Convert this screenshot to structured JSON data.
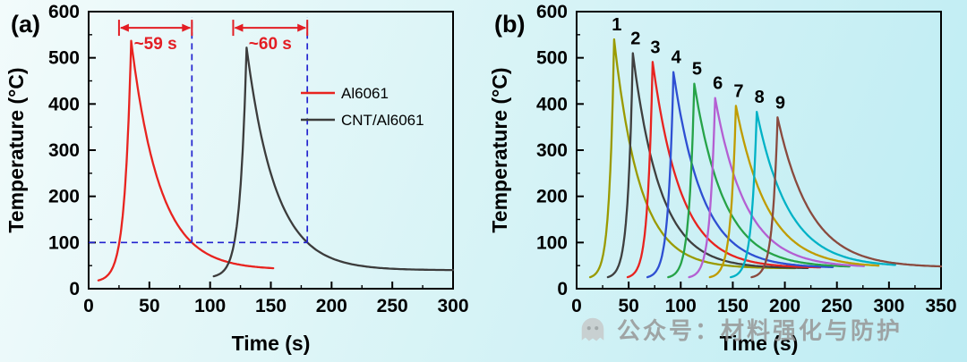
{
  "figure": {
    "background": {
      "gradient_from": "#f2fbfb",
      "gradient_to": "#bdecf3"
    },
    "watermark": {
      "text": "公众号：材料强化与防护",
      "color": "#979797",
      "icon": "ghost-logo"
    }
  },
  "chart_data": [
    {
      "id": "a",
      "type": "line",
      "panel_label": "(a)",
      "xlabel": "Time (s)",
      "ylabel": "Temperature (°C)",
      "xlim": [
        0,
        300
      ],
      "ylim": [
        0,
        600
      ],
      "xticks": [
        0,
        50,
        100,
        150,
        200,
        250,
        300
      ],
      "yticks": [
        0,
        100,
        200,
        300,
        400,
        500,
        600
      ],
      "x_minor_step": 25,
      "y_minor_step": 50,
      "grid": false,
      "legend_position": "middle-right",
      "series": [
        {
          "name": "Al6061",
          "color": "#e8231f",
          "start_time": 8,
          "start_temp": 18,
          "peak_time": 35,
          "peak_temp": 537,
          "time_cross_100_up": 25,
          "time_cross_100_down": 85,
          "end_time": 152,
          "end_temp": 45
        },
        {
          "name": "CNT/Al6061",
          "color": "#3c3c3c",
          "start_time": 103,
          "start_temp": 27,
          "peak_time": 130,
          "peak_temp": 522,
          "time_cross_100_up": 120,
          "time_cross_100_down": 180,
          "end_time": 300,
          "end_temp": 44
        }
      ],
      "annotations": {
        "duration_arrows": [
          {
            "label": "~59 s",
            "x_from": 25,
            "x_to": 85,
            "y": 565,
            "color": "#e31e24"
          },
          {
            "label": "~60 s",
            "x_from": 119,
            "x_to": 180,
            "y": 565,
            "color": "#e31e24"
          }
        ],
        "reference_lines": {
          "color": "#2323cf",
          "horizontal": [
            {
              "y": 100,
              "x_from": 0,
              "x_to": 180
            }
          ],
          "vertical": [
            {
              "x": 85,
              "y_from": 100,
              "y_to": 588
            },
            {
              "x": 180,
              "y_from": 100,
              "y_to": 588
            }
          ]
        }
      }
    },
    {
      "id": "b",
      "type": "line",
      "panel_label": "(b)",
      "xlabel": "Time (s)",
      "ylabel": "Temperature (°C)",
      "xlim": [
        0,
        350
      ],
      "ylim": [
        0,
        600
      ],
      "xticks": [
        0,
        50,
        100,
        150,
        200,
        250,
        300,
        350
      ],
      "yticks": [
        0,
        100,
        200,
        300,
        400,
        500,
        600
      ],
      "x_minor_step": 25,
      "y_minor_step": 50,
      "grid": false,
      "peak_labels": true,
      "series": [
        {
          "name": "1",
          "color": "#9a9a00",
          "start_time": 13,
          "start_temp": 25,
          "peak_time": 36,
          "peak_temp": 540,
          "time_cross_100_down": 90,
          "end_time": 210,
          "end_temp": 48
        },
        {
          "name": "2",
          "color": "#3f3f3f",
          "start_time": 30,
          "start_temp": 25,
          "peak_time": 54,
          "peak_temp": 510,
          "time_cross_100_down": 110,
          "end_time": 222,
          "end_temp": 48
        },
        {
          "name": "3",
          "color": "#e8231f",
          "start_time": 49,
          "start_temp": 25,
          "peak_time": 73,
          "peak_temp": 491,
          "time_cross_100_down": 130,
          "end_time": 234,
          "end_temp": 49
        },
        {
          "name": "4",
          "color": "#2e4fd2",
          "start_time": 68,
          "start_temp": 25,
          "peak_time": 93,
          "peak_temp": 469,
          "time_cross_100_down": 150,
          "end_time": 246,
          "end_temp": 49
        },
        {
          "name": "5",
          "color": "#26a348",
          "start_time": 88,
          "start_temp": 25,
          "peak_time": 113,
          "peak_temp": 444,
          "time_cross_100_down": 170,
          "end_time": 262,
          "end_temp": 50
        },
        {
          "name": "6",
          "color": "#b45fd2",
          "start_time": 108,
          "start_temp": 25,
          "peak_time": 133,
          "peak_temp": 413,
          "time_cross_100_down": 190,
          "end_time": 276,
          "end_temp": 50
        },
        {
          "name": "7",
          "color": "#bf9c00",
          "start_time": 128,
          "start_temp": 25,
          "peak_time": 153,
          "peak_temp": 396,
          "time_cross_100_down": 210,
          "end_time": 290,
          "end_temp": 50
        },
        {
          "name": "8",
          "color": "#00b2c6",
          "start_time": 148,
          "start_temp": 25,
          "peak_time": 173,
          "peak_temp": 383,
          "time_cross_100_down": 230,
          "end_time": 306,
          "end_temp": 51
        },
        {
          "name": "9",
          "color": "#8a4a3e",
          "start_time": 168,
          "start_temp": 25,
          "peak_time": 193,
          "peak_temp": 371,
          "time_cross_100_down": 250,
          "end_time": 350,
          "end_temp": 50
        }
      ]
    }
  ]
}
